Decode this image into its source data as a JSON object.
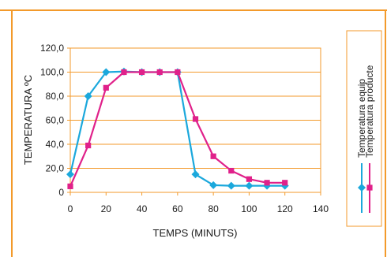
{
  "chart_data": {
    "type": "line",
    "xlabel": "TEMPS (MINUTS)",
    "ylabel": "TEMPERATURA ºC",
    "xlim": [
      0,
      140
    ],
    "ylim": [
      0,
      120
    ],
    "x_ticks": [
      "0",
      "20",
      "40",
      "60",
      "80",
      "100",
      "120",
      "140"
    ],
    "y_ticks": [
      "0",
      "20,0",
      "40,0",
      "60,0",
      "80,0",
      "100,0",
      "120,0"
    ],
    "grid": "horizontal",
    "legend_position": "right",
    "series": [
      {
        "name": "Temperatura equip",
        "color": "#1ba8dc",
        "marker": "diamond",
        "x": [
          0,
          10,
          20,
          30,
          40,
          50,
          60,
          70,
          80,
          90,
          100,
          110,
          120
        ],
        "y": [
          15,
          80,
          100,
          100.5,
          100,
          100,
          100,
          15,
          6,
          5.5,
          5.5,
          5.5,
          5.5
        ]
      },
      {
        "name": "Temperatura producte",
        "color": "#e0218a",
        "marker": "square",
        "x": [
          0,
          10,
          20,
          30,
          40,
          50,
          60,
          70,
          80,
          90,
          100,
          110,
          120
        ],
        "y": [
          5,
          39,
          87,
          100,
          100,
          100,
          100,
          61,
          30,
          18,
          11,
          8,
          8
        ]
      }
    ]
  },
  "colors": {
    "frame": "#f39a2b",
    "plot_border": "#f39a2b",
    "grid": "#f39a2b"
  }
}
